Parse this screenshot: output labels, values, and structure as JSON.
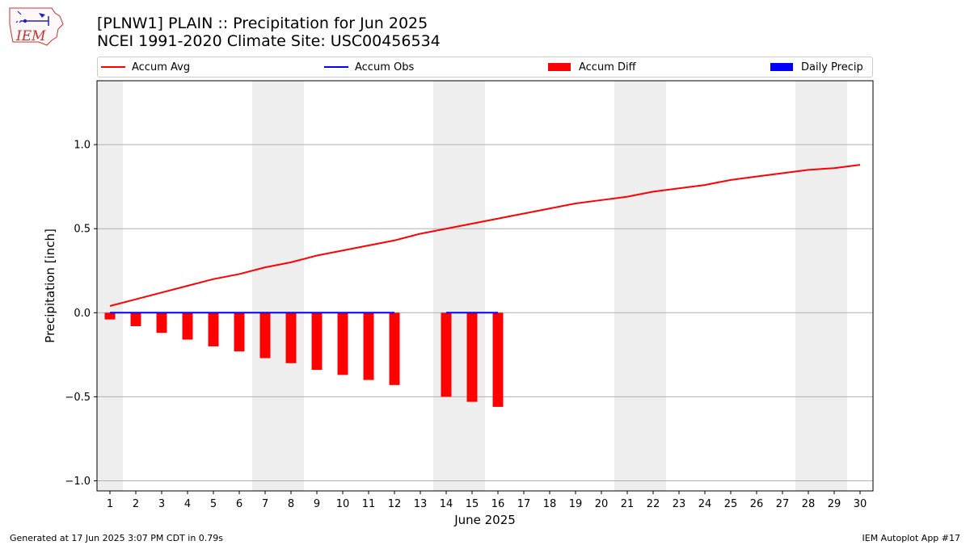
{
  "header": {
    "title_line1": "[PLNW1] PLAIN :: Precipitation for Jun 2025",
    "title_line2": "NCEI 1991-2020 Climate Site: USC00456534",
    "logo_text": "IEM"
  },
  "legend": [
    {
      "label": "Accum Avg",
      "kind": "line",
      "color": "#ff0000"
    },
    {
      "label": "Accum Obs",
      "kind": "line",
      "color": "#0000ff"
    },
    {
      "label": "Accum Diff",
      "kind": "box",
      "color": "#ff0000"
    },
    {
      "label": "Daily Precip",
      "kind": "box",
      "color": "#0000ff"
    }
  ],
  "footer": {
    "left": "Generated at 17 Jun 2025 3:07 PM CDT in 0.79s",
    "right": "IEM Autoplot App #17"
  },
  "chart_data": {
    "type": "line",
    "xlabel": "June 2025",
    "ylabel": "Precipitation [inch]",
    "x": [
      1,
      2,
      3,
      4,
      5,
      6,
      7,
      8,
      9,
      10,
      11,
      12,
      13,
      14,
      15,
      16,
      17,
      18,
      19,
      20,
      21,
      22,
      23,
      24,
      25,
      26,
      27,
      28,
      29,
      30
    ],
    "xlim": [
      0.5,
      30.5
    ],
    "ylim": [
      -1.06,
      1.38
    ],
    "yticks": [
      -1.0,
      -0.5,
      0.0,
      0.5,
      1.0
    ],
    "ytick_labels": [
      "−1.0",
      "−0.5",
      "0.0",
      "0.5",
      "1.0"
    ],
    "grid": "horizontal",
    "weekend_shading": [
      [
        0.5,
        1.5
      ],
      [
        6.5,
        8.5
      ],
      [
        13.5,
        15.5
      ],
      [
        20.5,
        22.5
      ],
      [
        27.5,
        29.5
      ]
    ],
    "series": [
      {
        "name": "Accum Avg",
        "type": "line",
        "color": "#ff0000",
        "values": [
          0.04,
          0.08,
          0.12,
          0.16,
          0.2,
          0.23,
          0.27,
          0.3,
          0.34,
          0.37,
          0.4,
          0.43,
          0.47,
          0.5,
          0.53,
          0.56,
          0.59,
          0.62,
          0.65,
          0.67,
          0.69,
          0.72,
          0.74,
          0.76,
          0.79,
          0.81,
          0.83,
          0.85,
          0.86,
          0.88
        ]
      },
      {
        "name": "Accum Obs",
        "type": "line",
        "color": "#0000ff",
        "values": [
          0,
          0,
          0,
          0,
          0,
          0,
          0,
          0,
          0,
          0,
          0,
          0,
          null,
          0,
          0,
          0,
          null,
          null,
          null,
          null,
          null,
          null,
          null,
          null,
          null,
          null,
          null,
          null,
          null,
          null
        ]
      },
      {
        "name": "Accum Diff",
        "type": "bar",
        "color": "#ff0000",
        "values": [
          -0.04,
          -0.08,
          -0.12,
          -0.16,
          -0.2,
          -0.23,
          -0.27,
          -0.3,
          -0.34,
          -0.37,
          -0.4,
          -0.43,
          null,
          -0.5,
          -0.53,
          -0.56,
          null,
          null,
          null,
          null,
          null,
          null,
          null,
          null,
          null,
          null,
          null,
          null,
          null,
          null
        ]
      },
      {
        "name": "Daily Precip",
        "type": "bar",
        "color": "#0000ff",
        "values": [
          0,
          0,
          0,
          0,
          0,
          0,
          0,
          0,
          0,
          0,
          0,
          0,
          null,
          0,
          0,
          0,
          null,
          null,
          null,
          null,
          null,
          null,
          null,
          null,
          null,
          null,
          null,
          null,
          null,
          null
        ]
      }
    ]
  }
}
